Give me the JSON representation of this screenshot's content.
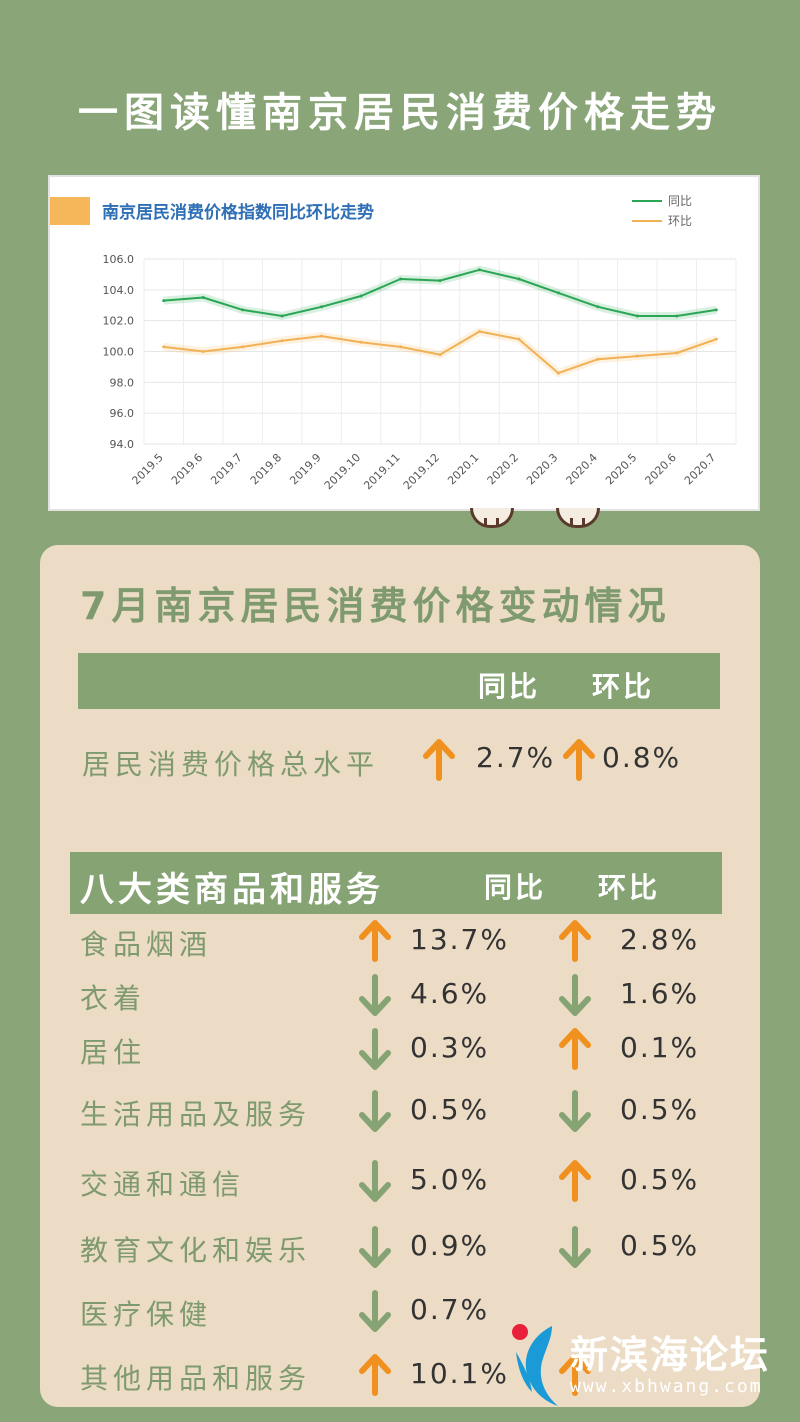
{
  "page_title": "一图读懂南京居民消费价格走势",
  "colors": {
    "background": "#8aa679",
    "yoy_line": "#2aa655",
    "mom_line": "#f2b155",
    "arrow_up": "#f0901e",
    "arrow_down": "#86a374",
    "label_green": "#7e9a6e"
  },
  "chart_data": {
    "type": "line",
    "title": "南京居民消费价格指数同比环比走势",
    "categories": [
      "2019.5",
      "2019.6",
      "2019.7",
      "2019.8",
      "2019.9",
      "2019.10",
      "2019.11",
      "2019.12",
      "2020.1",
      "2020.2",
      "2020.3",
      "2020.4",
      "2020.5",
      "2020.6",
      "2020.7"
    ],
    "series": [
      {
        "name": "同比",
        "color": "#2aa655",
        "values": [
          103.3,
          103.5,
          102.7,
          102.3,
          102.9,
          103.6,
          104.7,
          104.6,
          105.3,
          104.7,
          103.8,
          102.9,
          102.3,
          102.3,
          102.7
        ]
      },
      {
        "name": "环比",
        "color": "#f2b155",
        "values": [
          100.3,
          100.0,
          100.3,
          100.7,
          101.0,
          100.6,
          100.3,
          99.8,
          101.3,
          100.8,
          98.6,
          99.5,
          99.7,
          99.9,
          100.8
        ]
      }
    ],
    "ylim": [
      94.0,
      106.0
    ],
    "yticks": [
      "106.0",
      "104.0",
      "102.0",
      "100.0",
      "98.0",
      "96.0",
      "94.0"
    ],
    "grid": true,
    "legend": "top-right"
  },
  "panel": {
    "title": "7月南京居民消费价格变动情况",
    "header_yoy": "同比",
    "header_mom": "环比",
    "overall": {
      "label": "居民消费价格总水平",
      "yoy": "2.7%",
      "yoy_dir": "up",
      "mom": "0.8%",
      "mom_dir": "up"
    },
    "category_header": "八大类商品和服务",
    "categories": [
      {
        "label": "食品烟酒",
        "yoy": "13.7%",
        "yoy_dir": "up",
        "mom": "2.8%",
        "mom_dir": "up"
      },
      {
        "label": "衣着",
        "yoy": "4.6%",
        "yoy_dir": "down",
        "mom": "1.6%",
        "mom_dir": "down"
      },
      {
        "label": "居住",
        "yoy": "0.3%",
        "yoy_dir": "down",
        "mom": "0.1%",
        "mom_dir": "up"
      },
      {
        "label": "生活用品及服务",
        "yoy": "0.5%",
        "yoy_dir": "down",
        "mom": "0.5%",
        "mom_dir": "down"
      },
      {
        "label": "交通和通信",
        "yoy": "5.0%",
        "yoy_dir": "down",
        "mom": "0.5%",
        "mom_dir": "up"
      },
      {
        "label": "教育文化和娱乐",
        "yoy": "0.9%",
        "yoy_dir": "down",
        "mom": "0.5%",
        "mom_dir": "down"
      },
      {
        "label": "医疗保健",
        "yoy": "0.7%",
        "yoy_dir": "down",
        "mom": "",
        "mom_dir": ""
      },
      {
        "label": "其他用品和服务",
        "yoy": "10.1%",
        "yoy_dir": "up",
        "mom": "",
        "mom_dir": "up"
      }
    ]
  },
  "watermark": {
    "name": "新滨海论坛",
    "url": "www.xbhwang.com"
  }
}
